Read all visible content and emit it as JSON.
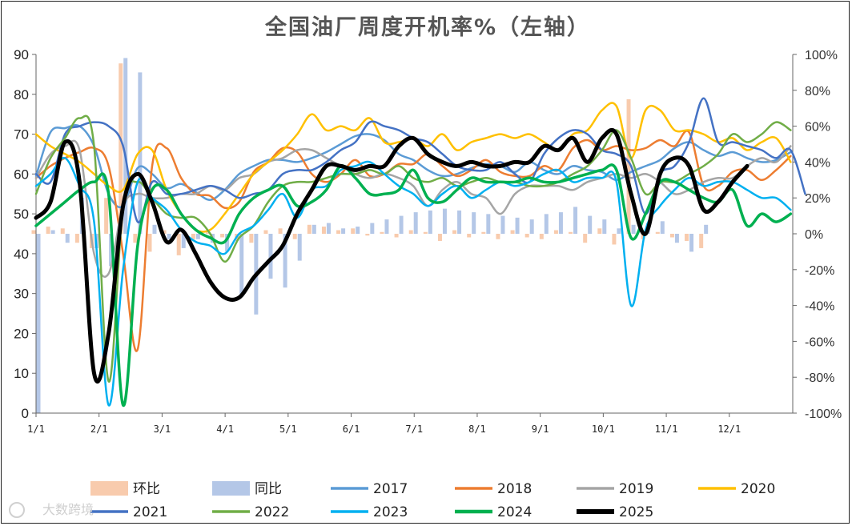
{
  "chart_data": {
    "type": "line",
    "title": "全国油厂周度开机率%（左轴",
    "title_suffix": "）",
    "y_left": {
      "min": 0,
      "max": 90,
      "ticks": [
        "0",
        "10",
        "20",
        "30",
        "40",
        "50",
        "60",
        "70",
        "80",
        "90"
      ]
    },
    "y_right": {
      "min": -100,
      "max": 100,
      "ticks": [
        "-100%",
        "-80%",
        "-60%",
        "-40%",
        "-20%",
        "0%",
        "20%",
        "40%",
        "60%",
        "80%",
        "100%"
      ]
    },
    "x_ticks": [
      "1/1",
      "2/1",
      "3/1",
      "4/1",
      "5/1",
      "6/1",
      "7/1",
      "8/1",
      "9/1",
      "10/1",
      "11/1",
      "12/1"
    ],
    "x_domain": [
      1,
      366
    ],
    "huanbi": {
      "name": "环比",
      "color": "#f8cbad",
      "x": [
        1,
        8,
        15,
        22,
        29,
        36,
        43,
        50,
        57,
        64,
        71,
        78,
        85,
        92,
        99,
        106,
        113,
        120,
        127,
        134,
        141,
        148,
        155,
        162,
        169,
        176,
        183,
        190,
        197,
        204,
        211,
        218,
        225,
        232,
        239,
        246,
        253,
        260,
        267,
        274,
        281,
        288,
        295,
        302,
        309,
        316,
        323
      ],
      "values": [
        2,
        4,
        3,
        -5,
        -8,
        20,
        95,
        -5,
        -10,
        2,
        -12,
        -3,
        1,
        -2,
        -4,
        -5,
        2,
        3,
        -3,
        5,
        4,
        2,
        3,
        -1,
        1,
        -2,
        2,
        1,
        -4,
        2,
        -2,
        1,
        -3,
        2,
        -2,
        -3,
        2,
        1,
        -5,
        3,
        -6,
        75,
        -3,
        1,
        -2,
        -4,
        -8
      ]
    },
    "tongbi": {
      "name": "同比",
      "color": "#b4c7e7",
      "x": [
        1,
        8,
        15,
        22,
        29,
        36,
        43,
        50,
        57,
        64,
        71,
        78,
        85,
        92,
        99,
        106,
        113,
        120,
        127,
        134,
        141,
        148,
        155,
        162,
        169,
        176,
        183,
        190,
        197,
        204,
        211,
        218,
        225,
        232,
        239,
        246,
        253,
        260,
        267,
        274,
        281,
        288,
        295,
        302,
        309,
        316,
        323
      ],
      "values": [
        -100,
        2,
        -5,
        20,
        -8,
        -18,
        98,
        90,
        5,
        -3,
        -8,
        -3,
        -5,
        -10,
        -35,
        -45,
        -25,
        -30,
        -15,
        5,
        6,
        3,
        4,
        6,
        8,
        10,
        12,
        13,
        14,
        13,
        12,
        11,
        10,
        9,
        8,
        11,
        12,
        15,
        10,
        8,
        3,
        5,
        6,
        7,
        -5,
        -10,
        5
      ]
    },
    "series": [
      {
        "name": "2017",
        "color": "#5b9bd5",
        "width": 2.5,
        "values": [
          59.5,
          70.5,
          71.5,
          72,
          67,
          55,
          52,
          61.5,
          60,
          56.5,
          57.5,
          55.5,
          53.5,
          56,
          60,
          62,
          63.5,
          63.5,
          63,
          64,
          65.5,
          67.5,
          69.5,
          70,
          68.5,
          65,
          63.5,
          61,
          59.5,
          60,
          61.5,
          62.5,
          62,
          60.5,
          63,
          61,
          60,
          62,
          61,
          60.5,
          58.5,
          60.5,
          62,
          63.5,
          66.5,
          68,
          66,
          64.5,
          65.5,
          64,
          63,
          63.5,
          65.5
        ]
      },
      {
        "name": "2018",
        "color": "#ed7d31",
        "width": 2.5,
        "values": [
          59,
          62,
          64,
          65.5,
          66.5,
          62,
          40,
          16,
          62,
          66.5,
          59,
          55,
          54.5,
          51.5,
          53,
          60.5,
          63,
          66.5,
          65.5,
          60,
          58,
          60,
          63.5,
          59.5,
          60,
          62.5,
          62.5,
          65,
          62,
          59.5,
          61,
          63.5,
          60.5,
          59.5,
          59.5,
          62,
          61,
          66.5,
          68.5,
          66,
          67,
          66,
          66.5,
          68.5,
          67,
          70.5,
          57,
          57,
          60.5,
          61,
          58.5,
          61,
          64.5
        ]
      },
      {
        "name": "2019",
        "color": "#a5a5a5",
        "width": 2.5,
        "values": [
          59,
          65,
          67,
          66,
          40,
          35,
          52,
          55,
          54,
          54,
          55,
          55,
          57,
          56,
          59,
          60,
          63,
          64,
          66,
          66,
          64,
          62,
          60,
          59,
          60,
          59,
          57,
          52,
          56,
          58,
          55,
          54,
          50,
          55,
          57,
          57,
          57,
          56,
          58,
          59,
          60,
          59,
          60,
          58,
          55,
          56,
          58,
          59,
          59,
          62,
          64,
          63,
          67
        ]
      },
      {
        "name": "2020",
        "color": "#ffc000",
        "width": 2.5,
        "values": [
          70,
          67,
          65,
          63,
          60,
          57,
          56,
          65,
          66,
          56,
          50,
          46,
          46,
          50,
          55,
          60,
          63,
          66,
          70,
          75,
          71,
          72,
          71,
          74,
          68,
          68,
          69,
          67,
          70,
          66,
          68,
          69,
          70,
          69,
          70,
          68,
          66,
          70,
          71,
          76,
          77,
          64,
          76,
          76,
          71,
          71,
          70,
          68,
          69,
          66,
          68,
          69,
          63
        ]
      },
      {
        "name": "2021",
        "color": "#4472c4",
        "width": 2.5,
        "values": [
          60,
          58,
          70,
          72,
          73,
          72,
          67,
          48,
          58,
          55,
          55,
          56,
          57,
          56,
          54,
          55,
          56,
          60,
          61,
          61,
          63,
          66,
          68,
          73,
          72,
          71,
          69,
          68,
          65,
          62,
          61,
          61,
          63,
          60,
          58,
          65,
          69,
          71,
          70,
          66,
          65,
          62,
          50,
          60,
          62,
          68,
          79,
          68,
          68,
          67,
          66,
          64,
          66,
          55
        ]
      },
      {
        "name": "2022",
        "color": "#70ad47",
        "width": 2.5,
        "values": [
          55,
          64,
          69,
          74,
          67,
          8,
          52,
          58,
          54,
          50,
          49,
          49,
          45,
          38,
          44,
          47,
          53,
          57,
          58,
          58,
          59,
          60,
          60,
          61,
          60,
          62,
          59,
          58,
          59,
          57,
          58,
          59,
          58,
          58,
          57,
          57,
          58,
          60,
          62,
          66,
          71,
          64,
          55,
          58,
          58,
          60,
          62,
          65,
          70,
          68,
          70,
          73,
          71
        ]
      },
      {
        "name": "2023",
        "color": "#00b0f0",
        "width": 2.5,
        "values": [
          57,
          60,
          64,
          57,
          48,
          2,
          36,
          58,
          54,
          51,
          46,
          43,
          42,
          40,
          45,
          47,
          51,
          55,
          49,
          56,
          57,
          61,
          62,
          63,
          60,
          57,
          55,
          52,
          55,
          57,
          54,
          56,
          58,
          57,
          58,
          60,
          61,
          58,
          59,
          59,
          58,
          27,
          46,
          52,
          56,
          59,
          57,
          58,
          58,
          56,
          54,
          54,
          51
        ]
      },
      {
        "name": "2024",
        "color": "#00b050",
        "width": 3.5,
        "values": [
          47,
          50,
          53,
          56,
          58,
          55,
          2,
          42,
          56,
          56,
          50,
          46,
          44,
          43,
          50,
          54,
          56,
          57,
          52,
          53,
          56,
          62,
          59,
          55,
          55,
          56,
          61,
          54,
          53,
          56,
          59,
          58,
          58,
          58,
          59,
          58,
          58,
          59,
          60,
          61,
          61,
          44,
          50,
          58,
          58,
          56,
          54,
          53,
          56,
          47,
          50,
          48,
          50
        ]
      },
      {
        "name": "2025",
        "color": "#000000",
        "width": 5,
        "values": [
          49,
          53,
          68,
          58,
          10,
          20,
          52,
          60,
          53,
          43,
          46,
          40,
          33,
          29,
          29,
          34,
          38,
          42,
          50,
          56,
          62,
          62,
          61,
          62,
          62,
          67,
          69,
          65,
          63,
          62,
          63,
          62,
          62,
          63,
          63,
          67,
          66,
          69,
          63,
          69,
          70,
          55,
          45,
          60,
          64,
          62,
          51,
          53,
          58,
          62
        ]
      }
    ],
    "legend": [
      "环比",
      "同比",
      "2017",
      "2018",
      "2019",
      "2020",
      "2021",
      "2022",
      "2023",
      "2024",
      "2025"
    ],
    "watermark": "大数跨境"
  }
}
